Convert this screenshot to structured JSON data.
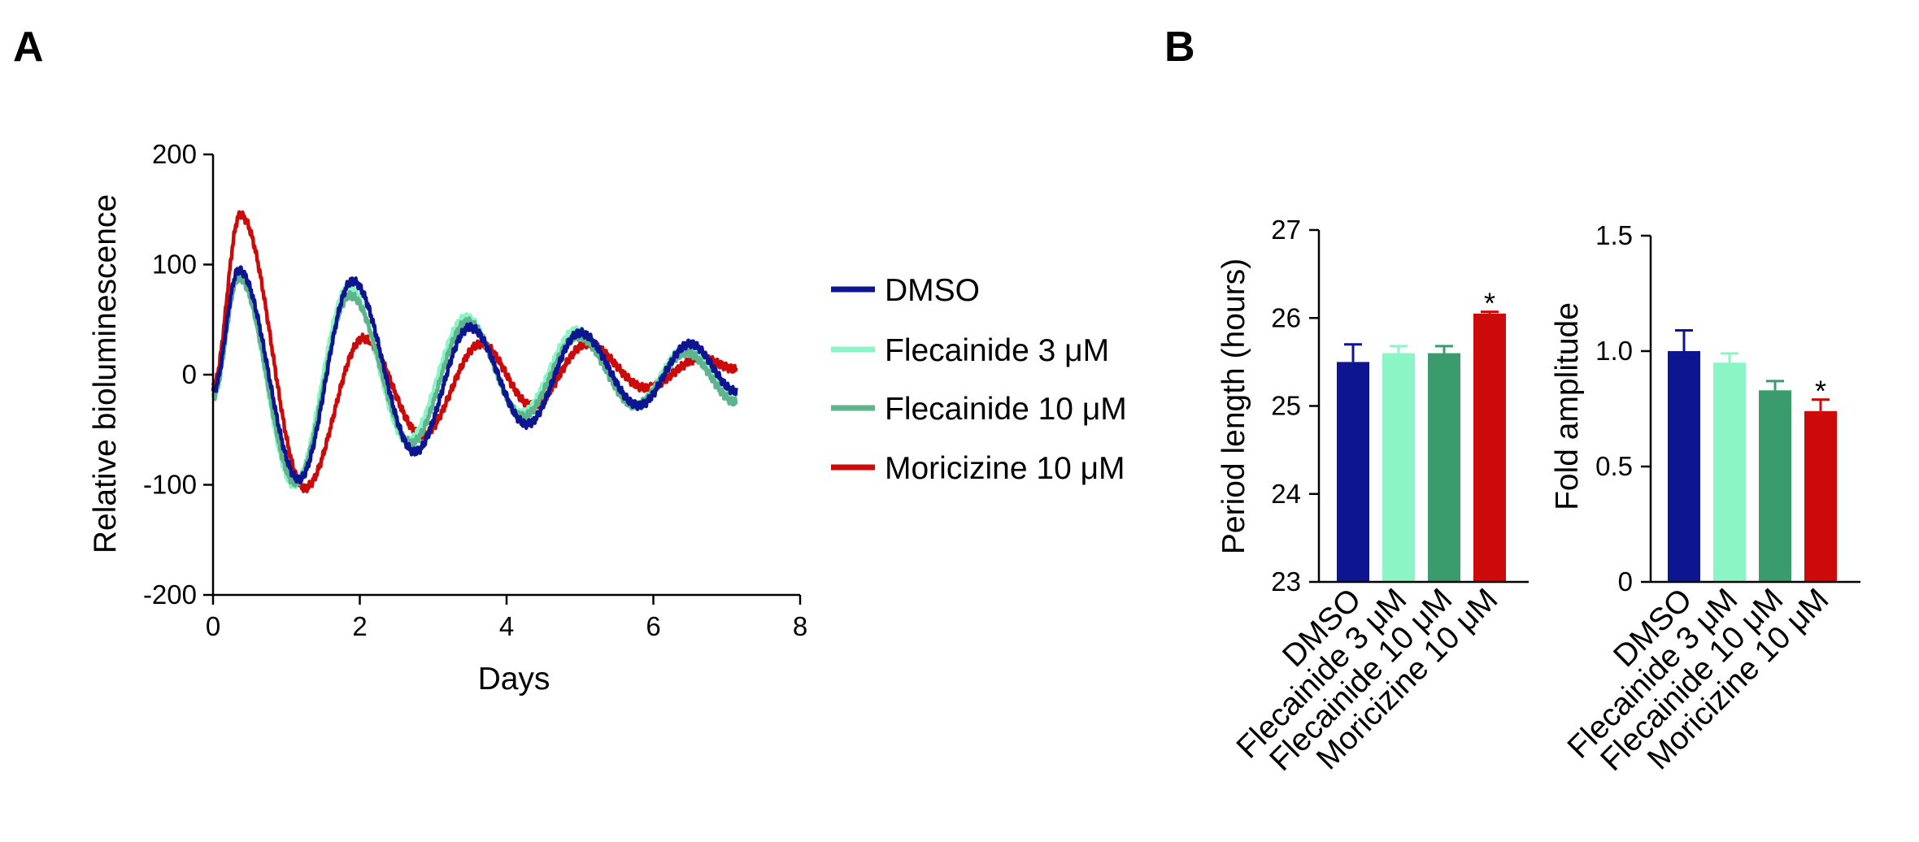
{
  "panels": {
    "a": "A",
    "b": "B"
  },
  "line_chart": {
    "xlabel": "Days",
    "ylabel": "Relative bioluminescence",
    "x_ticks": [
      "0",
      "2",
      "4",
      "6",
      "8"
    ],
    "y_ticks": [
      "200",
      "100",
      "0",
      "-100",
      "-200"
    ],
    "legend": {
      "dmso": "DMSO",
      "fle3": "Flecainide 3 μM",
      "fle10": "Flecainide 10 μM",
      "mor10": "Moricizine 10 μM"
    }
  },
  "period_chart": {
    "ylabel": "Period length (hours)",
    "y_ticks": [
      "27",
      "26",
      "25",
      "24",
      "23"
    ],
    "categories": [
      "DMSO",
      "Flecainide 3 μM",
      "Flecainide 10 μM",
      "Moricizine 10 μM"
    ],
    "star": "*"
  },
  "amplitude_chart": {
    "ylabel": "Fold amplitude",
    "y_ticks": [
      "1.5",
      "1.0",
      "0.5",
      "0"
    ],
    "categories": [
      "DMSO",
      "Flecainide 3 μM",
      "Flecainide 10 μM",
      "Moricizine 10 μM"
    ],
    "star": "*"
  },
  "colors": {
    "dmso": "#0d1590",
    "fle3": "#8cf5c6",
    "fle10": "#3a9c6c",
    "mor10": "#cc0a0a",
    "line_fle10": "#5eb48d"
  },
  "chart_data": [
    {
      "type": "line",
      "title": "",
      "xlabel": "Days",
      "ylabel": "Relative bioluminescence",
      "xlim": [
        0,
        8
      ],
      "ylim": [
        -200,
        200
      ],
      "series": [
        {
          "name": "DMSO",
          "start": -15,
          "end": -15,
          "extrema": [
            [
              0.35,
              95
            ],
            [
              1.17,
              -95
            ],
            [
              1.9,
              85
            ],
            [
              2.75,
              -70
            ],
            [
              3.5,
              43
            ],
            [
              4.28,
              -45
            ],
            [
              5.0,
              38
            ],
            [
              5.8,
              -28
            ],
            [
              6.5,
              28
            ],
            [
              7.13,
              -15
            ]
          ]
        },
        {
          "name": "Flecainide 3 μM",
          "start": -20,
          "end": -20,
          "extrema": [
            [
              0.35,
              90
            ],
            [
              1.1,
              -100
            ],
            [
              1.85,
              80
            ],
            [
              2.65,
              -60
            ],
            [
              3.45,
              52
            ],
            [
              4.2,
              -35
            ],
            [
              4.95,
              40
            ],
            [
              5.75,
              -28
            ],
            [
              6.45,
              25
            ],
            [
              7.13,
              -20
            ]
          ]
        },
        {
          "name": "Flecainide 10 μM",
          "start": -20,
          "end": -25,
          "extrema": [
            [
              0.35,
              88
            ],
            [
              1.12,
              -98
            ],
            [
              1.87,
              72
            ],
            [
              2.7,
              -62
            ],
            [
              3.47,
              48
            ],
            [
              4.22,
              -38
            ],
            [
              4.97,
              35
            ],
            [
              5.75,
              -28
            ],
            [
              6.45,
              20
            ],
            [
              7.13,
              -25
            ]
          ]
        },
        {
          "name": "Moricizine 10 μM",
          "start": -10,
          "end": 5,
          "extrema": [
            [
              0.37,
              145
            ],
            [
              1.25,
              -103
            ],
            [
              2.05,
              33
            ],
            [
              2.85,
              -55
            ],
            [
              3.65,
              28
            ],
            [
              4.35,
              -28
            ],
            [
              5.1,
              28
            ],
            [
              5.9,
              -12
            ],
            [
              6.65,
              15
            ],
            [
              7.13,
              5
            ]
          ]
        }
      ]
    },
    {
      "type": "bar",
      "title": "",
      "xlabel": "",
      "ylabel": "Period length (hours)",
      "ylim": [
        23,
        27
      ],
      "categories": [
        "DMSO",
        "Flecainide 3 μM",
        "Flecainide 10 μM",
        "Moricizine 10 μM"
      ],
      "values": [
        25.5,
        25.6,
        25.6,
        26.05
      ],
      "errors": [
        0.2,
        0.08,
        0.08,
        0.02
      ],
      "significant": [
        false,
        false,
        false,
        true
      ]
    },
    {
      "type": "bar",
      "title": "",
      "xlabel": "",
      "ylabel": "Fold amplitude",
      "ylim": [
        0,
        1.5
      ],
      "categories": [
        "DMSO",
        "Flecainide 3 μM",
        "Flecainide 10 μM",
        "Moricizine 10 μM"
      ],
      "values": [
        1.0,
        0.95,
        0.83,
        0.74
      ],
      "errors": [
        0.09,
        0.04,
        0.04,
        0.05
      ],
      "significant": [
        false,
        false,
        false,
        true
      ]
    }
  ]
}
